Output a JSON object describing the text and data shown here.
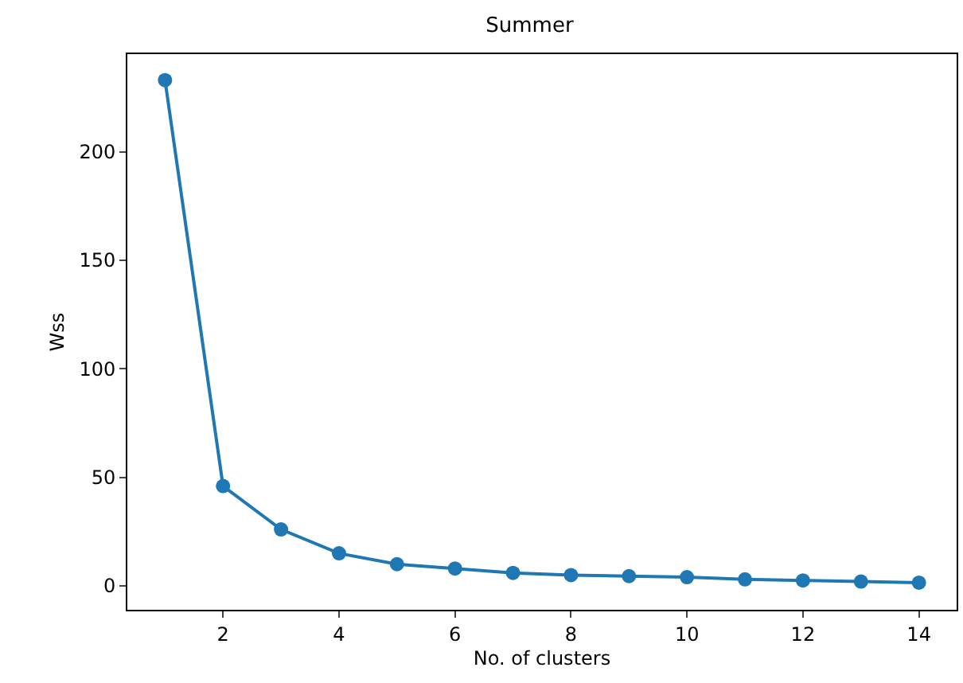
{
  "chart_data": {
    "type": "line",
    "title": "Summer",
    "xlabel": "No. of clusters",
    "ylabel": "Wss",
    "x": [
      1,
      2,
      3,
      4,
      5,
      6,
      7,
      8,
      9,
      10,
      11,
      12,
      13,
      14
    ],
    "series": [
      {
        "color": "#1f77b4",
        "values": [
          233,
          46,
          26,
          15,
          10,
          8,
          6,
          5,
          4.5,
          4,
          3,
          2.5,
          2,
          1.5
        ]
      }
    ],
    "xlim": [
      0.35,
      14.65
    ],
    "xticks": [
      2,
      4,
      6,
      8,
      10,
      12,
      14
    ],
    "ylim": [
      -11,
      245
    ],
    "yticks": [
      0,
      50,
      100,
      150,
      200
    ],
    "grid": false,
    "legend": false,
    "marker": "circle",
    "line_style": "solid"
  }
}
